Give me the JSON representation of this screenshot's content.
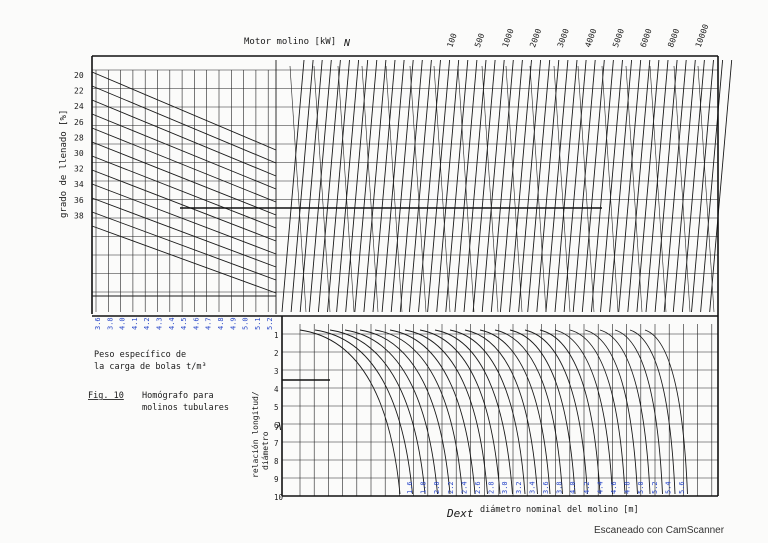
{
  "title_top": "Motor molino [kW]",
  "n_mark": "N",
  "power_labels": [
    "100",
    "500",
    "1000",
    "2000",
    "3000",
    "4000",
    "5000",
    "6000",
    "8000",
    "10000"
  ],
  "left_axis_label": "grado de llenado [%]",
  "fill_degree_labels": [
    "20",
    "22",
    "24",
    "26",
    "28",
    "30",
    "32",
    "34",
    "36",
    "38"
  ],
  "ball_density_labels": [
    "3.6",
    "3.8",
    "4.0",
    "4.1",
    "4.2",
    "4.3",
    "4.4",
    "4.5",
    "4.6",
    "4.7",
    "4.8",
    "4.9",
    "5.0",
    "5.1",
    "5.2"
  ],
  "ball_density_caption": [
    "Peso específico de",
    "la carga de bolas  t/m³"
  ],
  "figure_ref": "Fig. 10",
  "figure_caption": [
    "Homógrafo para",
    "molinos tubulares"
  ],
  "ratio_axis_label": [
    "relación longitud/",
    "diámetro"
  ],
  "lambda_mark": "λ",
  "ratio_labels": [
    "1",
    "2",
    "3",
    "4",
    "5",
    "6",
    "7",
    "8",
    "9",
    "10"
  ],
  "diameter_labels": [
    "1.6",
    "1.8",
    "2.0",
    "2.2",
    "2.4",
    "2.6",
    "2.8",
    "3.0",
    "3.2",
    "3.4",
    "3.6",
    "3.8",
    "4.0",
    "4.2",
    "4.4",
    "4.6",
    "4.8",
    "5.0",
    "5.2",
    "5.4",
    "5.6"
  ],
  "bottom_axis_label": "diámetro nominal del molino [m]",
  "dext_mark": "Dext",
  "watermark": "Escaneado con CamScanner",
  "colors": {
    "ink": "#1a1a1a",
    "blue_annotation": "#2746c8",
    "paper": "#fbfbfa"
  }
}
